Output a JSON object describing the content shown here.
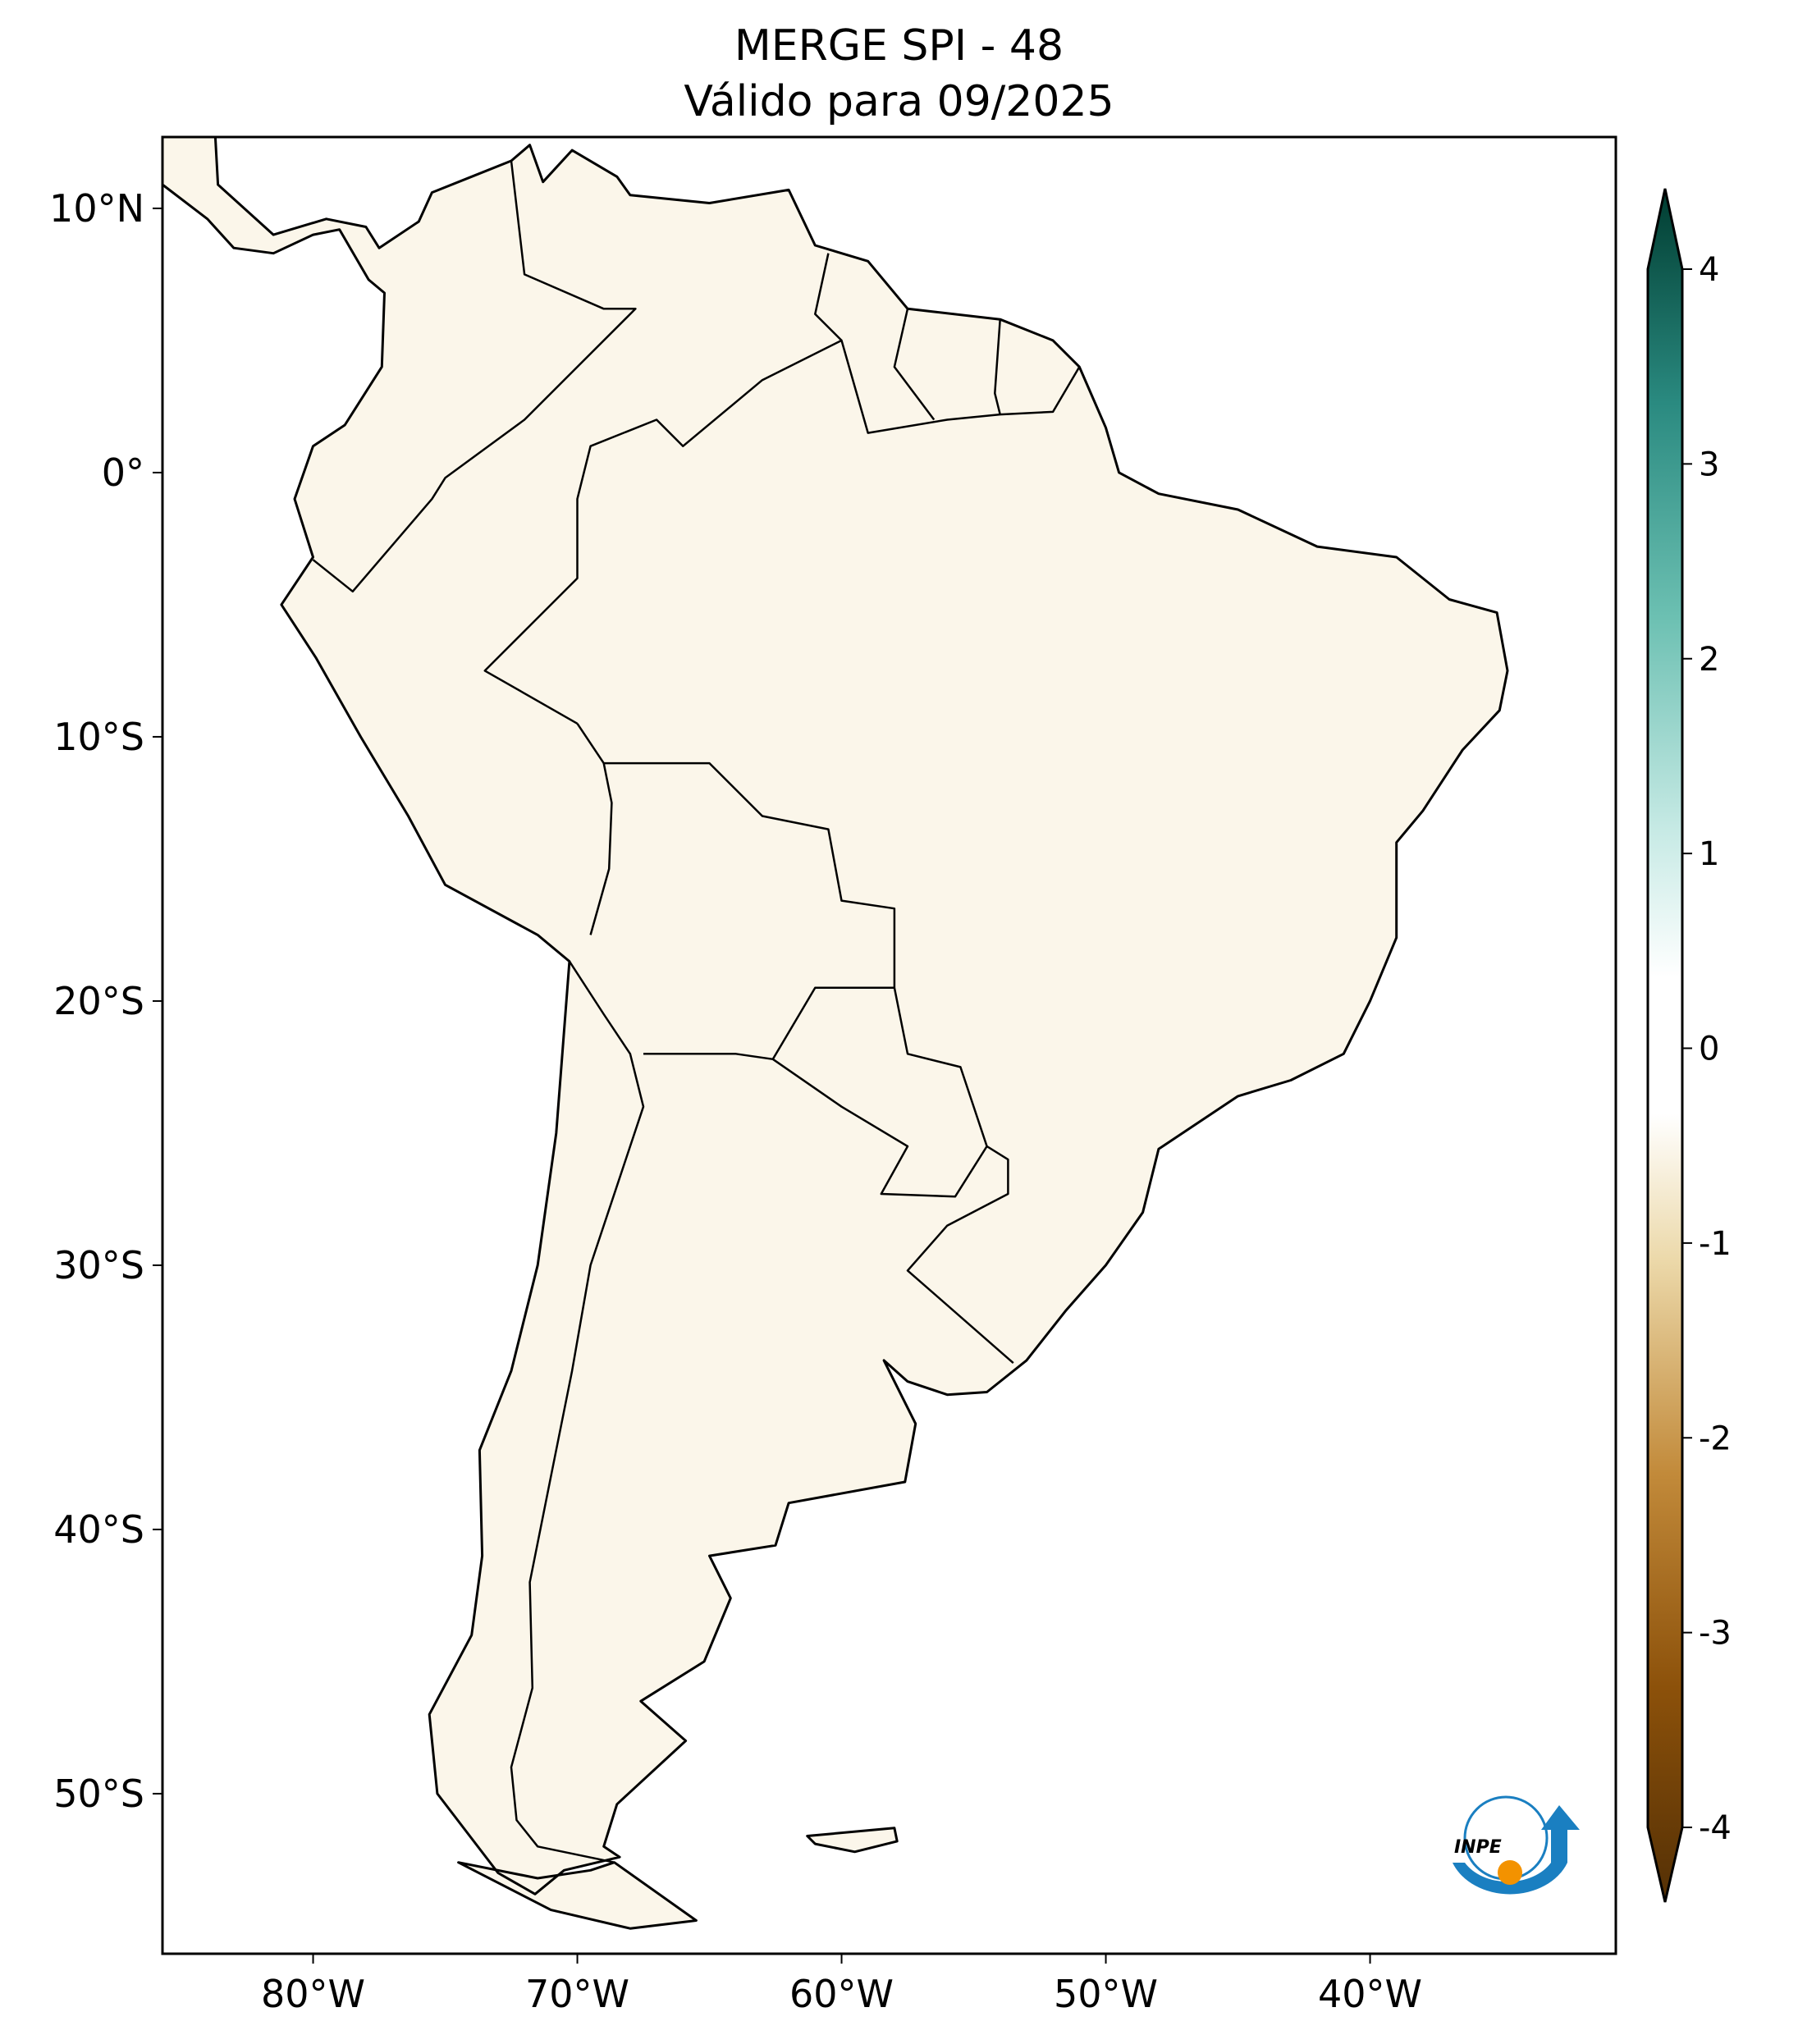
{
  "title": {
    "line1": "MERGE   SPI - 48",
    "line2": "Válido para 09/2025"
  },
  "chart_data": {
    "type": "heatmap",
    "title": "MERGE   SPI - 48",
    "subtitle": "Válido para 09/2025",
    "variable": "SPI - 48",
    "xlim": [
      -85.7,
      -30.7
    ],
    "ylim": [
      -56,
      12.7
    ],
    "x_ticks": [
      {
        "value": -80,
        "label": "80°W"
      },
      {
        "value": -70,
        "label": "70°W"
      },
      {
        "value": -60,
        "label": "60°W"
      },
      {
        "value": -50,
        "label": "50°W"
      },
      {
        "value": -40,
        "label": "40°W"
      }
    ],
    "y_ticks": [
      {
        "value": 10,
        "label": "10°N"
      },
      {
        "value": 0,
        "label": "0°"
      },
      {
        "value": -10,
        "label": "10°S"
      },
      {
        "value": -20,
        "label": "20°S"
      },
      {
        "value": -30,
        "label": "30°S"
      },
      {
        "value": -40,
        "label": "40°S"
      },
      {
        "value": -50,
        "label": "50°S"
      }
    ],
    "colorbar": {
      "range": [
        -4,
        4
      ],
      "extend": "both",
      "colormap": "BrBG",
      "ticks": [
        {
          "value": 4,
          "label": "4"
        },
        {
          "value": 3,
          "label": "3"
        },
        {
          "value": 2,
          "label": "2"
        },
        {
          "value": 1,
          "label": "1"
        },
        {
          "value": 0,
          "label": "0"
        },
        {
          "value": -1,
          "label": "-1"
        },
        {
          "value": -2,
          "label": "-2"
        },
        {
          "value": -3,
          "label": "-3"
        },
        {
          "value": -4,
          "label": "-4"
        }
      ],
      "colors": {
        "-4": "#543005",
        "-3": "#8c510a",
        "-2": "#c28a3a",
        "-1": "#ecd9aa",
        "0": "#ffffff",
        "1": "#c7eae5",
        "2": "#6cc0b2",
        "3": "#2a8a80",
        "4": "#003c30"
      }
    },
    "grid": false,
    "legend": "right"
  },
  "logo": {
    "text": "INPE"
  }
}
